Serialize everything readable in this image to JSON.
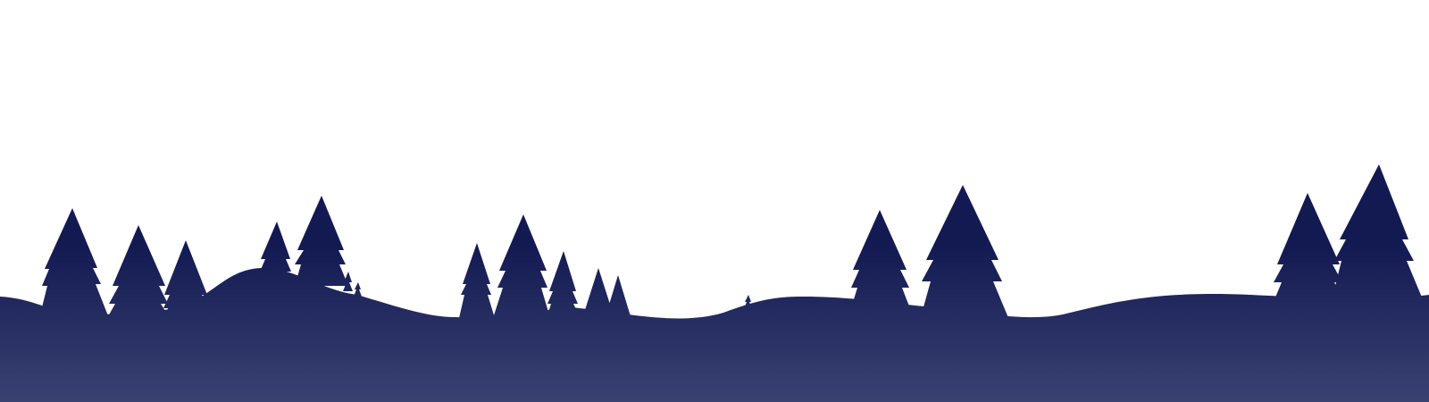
{
  "scene": {
    "background_color": "#ffffff",
    "silhouette_color_top": "#131a52",
    "silhouette_color_bottom": "#3a4272",
    "subject": "forest-silhouette-icon"
  }
}
